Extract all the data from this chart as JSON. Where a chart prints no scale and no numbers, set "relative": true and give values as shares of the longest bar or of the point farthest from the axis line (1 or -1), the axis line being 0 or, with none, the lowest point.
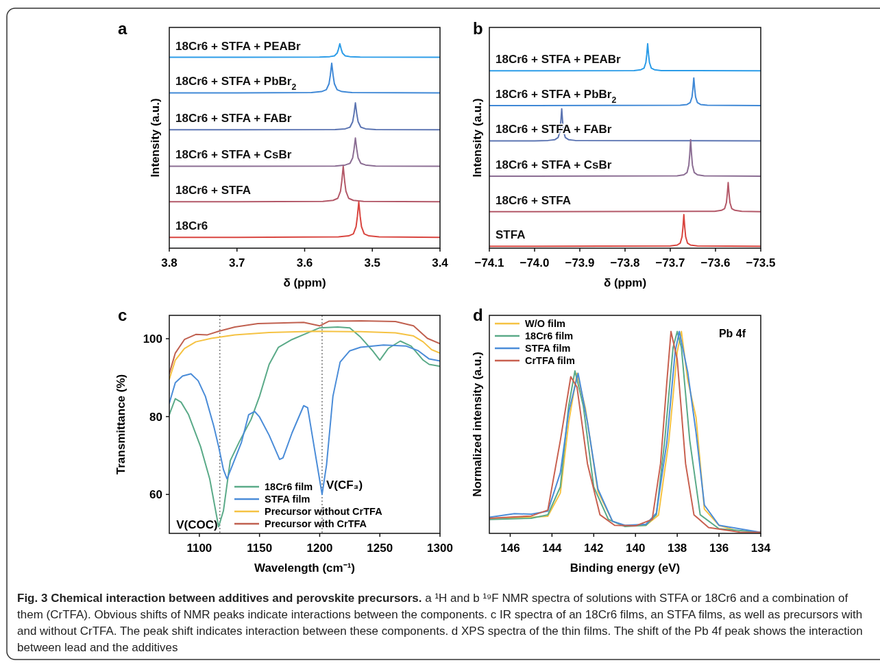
{
  "chart_data": [
    {
      "type": "line",
      "title": "a",
      "relative": true,
      "xlabel": "δ (ppm)",
      "ylabel": "Intensity (a.u.)",
      "xlim": [
        3.8,
        3.4
      ],
      "xticks": [
        3.8,
        3.7,
        3.6,
        3.5,
        3.4
      ],
      "annotations": [
        "Fig. 3 Chemical interaction between additives and perovskite precursors.",
        "a ¹H and b ¹⁹F NMR spectra of solutions with STFA or 18Cr6 and a combination of them (CrTFA). Obvious shifts of NMR peaks indicate interactions between the components. c IR spectra of an 18Cr6 films, an STFA films, as well as precursors with and without CrTFA. The peak shift indicates interaction between these components. d XPS spectra of the thin films. The shift of the Pb 4f peak shows the interaction between lead and the additives"
      ],
      "series": [
        {
          "name": "18Cr6 + STFA + PEABr",
          "color": "#2b9ce8",
          "x": [
            3.8,
            3.7,
            3.578,
            3.563,
            3.556,
            3.552,
            3.55,
            3.548,
            3.546,
            3.544,
            3.54,
            3.533,
            3.518,
            3.4
          ],
          "values": [
            0.934,
            0.934,
            0.935,
            0.937,
            0.941,
            0.954,
            0.974,
            1.0,
            0.974,
            0.954,
            0.941,
            0.937,
            0.935,
            0.934
          ]
        },
        {
          "name": "18Cr6 + STFA + PbBr$_{2}$",
          "color": "#3f88d6",
          "x": [
            3.8,
            3.7,
            3.59,
            3.575,
            3.568,
            3.564,
            3.562,
            3.56,
            3.558,
            3.556,
            3.552,
            3.545,
            3.53,
            3.4
          ],
          "values": [
            0.76,
            0.76,
            0.761,
            0.766,
            0.775,
            0.804,
            0.847,
            0.905,
            0.847,
            0.804,
            0.775,
            0.766,
            0.761,
            0.76
          ]
        },
        {
          "name": "18Cr6 + STFA + FABr",
          "color": "#5b74b2",
          "x": [
            3.8,
            3.7,
            3.555,
            3.54,
            3.533,
            3.529,
            3.527,
            3.525,
            3.523,
            3.521,
            3.517,
            3.51,
            3.495,
            3.4
          ],
          "values": [
            0.579,
            0.579,
            0.58,
            0.584,
            0.592,
            0.619,
            0.658,
            0.711,
            0.658,
            0.619,
            0.592,
            0.584,
            0.58,
            0.579
          ]
        },
        {
          "name": "18Cr6 + STFA + CsBr",
          "color": "#8b6d93",
          "x": [
            3.8,
            3.7,
            3.555,
            3.54,
            3.533,
            3.529,
            3.527,
            3.525,
            3.523,
            3.521,
            3.517,
            3.51,
            3.495,
            3.4
          ],
          "values": [
            0.401,
            0.401,
            0.402,
            0.407,
            0.415,
            0.442,
            0.484,
            0.539,
            0.484,
            0.442,
            0.415,
            0.407,
            0.402,
            0.401
          ]
        },
        {
          "name": "18Cr6 + STFA",
          "color": "#b35868",
          "x": [
            3.8,
            3.7,
            3.573,
            3.558,
            3.551,
            3.547,
            3.545,
            3.543,
            3.541,
            3.539,
            3.535,
            3.528,
            3.513,
            3.4
          ],
          "values": [
            0.227,
            0.227,
            0.229,
            0.234,
            0.244,
            0.279,
            0.331,
            0.401,
            0.331,
            0.279,
            0.244,
            0.234,
            0.229,
            0.227
          ]
        },
        {
          "name": "18Cr6",
          "color": "#d9453f",
          "x": [
            3.8,
            3.7,
            3.55,
            3.535,
            3.528,
            3.524,
            3.522,
            3.52,
            3.518,
            3.516,
            3.512,
            3.505,
            3.49,
            3.4
          ],
          "values": [
            0.053,
            0.053,
            0.055,
            0.06,
            0.07,
            0.105,
            0.157,
            0.227,
            0.157,
            0.105,
            0.07,
            0.06,
            0.055,
            0.053
          ]
        }
      ]
    },
    {
      "type": "line",
      "title": "b",
      "relative": true,
      "xlabel": "δ (ppm)",
      "ylabel": "Intensity (a.u.)",
      "xlim": [
        -74.1,
        -73.5
      ],
      "xticks": [
        {
          "value": -74.1,
          "label": "−74.1"
        },
        {
          "value": -74.0,
          "label": "−74.0"
        },
        {
          "value": -73.9,
          "label": "−73.9"
        },
        {
          "value": -73.8,
          "label": "−73.8"
        },
        {
          "value": -73.7,
          "label": "−73.7"
        },
        {
          "value": -73.6,
          "label": "−73.6"
        },
        {
          "value": -73.5,
          "label": "−73.5"
        }
      ],
      "series": [
        {
          "name": "18Cr6 + STFA + PEABr",
          "color": "#2b9ce8",
          "x": [
            -74.1,
            -74.0,
            -73.78,
            -73.765,
            -73.758,
            -73.754,
            -73.752,
            -73.75,
            -73.748,
            -73.746,
            -73.742,
            -73.735,
            -73.72,
            -73.5
          ],
          "values": [
            0.868,
            0.868,
            0.869,
            0.873,
            0.881,
            0.908,
            0.947,
            1.0,
            0.947,
            0.908,
            0.881,
            0.873,
            0.869,
            0.868
          ]
        },
        {
          "name": "18Cr6 + STFA + PbBr$_{2}$",
          "color": "#3f88d6",
          "x": [
            -74.1,
            -74.0,
            -73.678,
            -73.663,
            -73.656,
            -73.652,
            -73.65,
            -73.648,
            -73.646,
            -73.644,
            -73.64,
            -73.633,
            -73.618,
            -73.5
          ],
          "values": [
            0.698,
            0.698,
            0.699,
            0.703,
            0.712,
            0.739,
            0.779,
            0.833,
            0.779,
            0.739,
            0.712,
            0.703,
            0.699,
            0.698
          ]
        },
        {
          "name": "18Cr6 + STFA + FABr",
          "color": "#5b74b2",
          "x": [
            -74.1,
            -74.0,
            -73.97,
            -73.955,
            -73.948,
            -73.944,
            -73.942,
            -73.94,
            -73.938,
            -73.936,
            -73.932,
            -73.925,
            -73.91,
            -73.5
          ],
          "values": [
            0.525,
            0.525,
            0.527,
            0.531,
            0.541,
            0.572,
            0.619,
            0.682,
            0.619,
            0.572,
            0.541,
            0.531,
            0.527,
            0.525
          ]
        },
        {
          "name": "18Cr6 + STFA + CsBr",
          "color": "#8b6d93",
          "x": [
            -74.1,
            -74.0,
            -73.685,
            -73.67,
            -73.663,
            -73.659,
            -73.657,
            -73.655,
            -73.653,
            -73.651,
            -73.647,
            -73.64,
            -73.625,
            -73.5
          ],
          "values": [
            0.352,
            0.352,
            0.354,
            0.359,
            0.37,
            0.406,
            0.459,
            0.531,
            0.459,
            0.406,
            0.37,
            0.359,
            0.354,
            0.352
          ]
        },
        {
          "name": "18Cr6 + STFA",
          "color": "#b35868",
          "x": [
            -74.1,
            -74.0,
            -73.602,
            -73.587,
            -73.58,
            -73.576,
            -73.574,
            -73.572,
            -73.57,
            -73.568,
            -73.564,
            -73.557,
            -73.542,
            -73.5
          ],
          "values": [
            0.179,
            0.179,
            0.18,
            0.185,
            0.193,
            0.222,
            0.264,
            0.321,
            0.264,
            0.222,
            0.193,
            0.185,
            0.18,
            0.179
          ]
        },
        {
          "name": "STFA",
          "color": "#d9453f",
          "x": [
            -74.1,
            -74.0,
            -73.7,
            -73.685,
            -73.678,
            -73.674,
            -73.672,
            -73.67,
            -73.668,
            -73.666,
            -73.662,
            -73.655,
            -73.64,
            -73.5
          ],
          "values": [
            0.009,
            0.009,
            0.011,
            0.015,
            0.025,
            0.056,
            0.102,
            0.164,
            0.102,
            0.056,
            0.025,
            0.015,
            0.011,
            0.009
          ]
        }
      ]
    },
    {
      "type": "line",
      "title": "c",
      "xlabel": "Wavelength (cm⁻¹)",
      "ylabel": "Transmittance (%)",
      "xlim": [
        1075,
        1300
      ],
      "xticks": [
        1100,
        1150,
        1200,
        1250,
        1300
      ],
      "ylim": [
        50,
        106
      ],
      "yticks": [
        60,
        80,
        100
      ],
      "legend": "bottom",
      "ref_lines": [
        {
          "axis": "x",
          "value": 1117,
          "color": "#777777",
          "line_style": "dotted"
        },
        {
          "axis": "x",
          "value": 1202,
          "color": "#777777",
          "line_style": "dotted"
        }
      ],
      "annotations": [
        {
          "text": "V(COC)",
          "x": 1117,
          "y": 52
        },
        {
          "text": "V(CF₃)",
          "x": 1202,
          "y": 60
        }
      ],
      "series": [
        {
          "name": "18Cr6 film",
          "color": "#5aaa88",
          "x": [
            1075,
            1080,
            1084.8,
            1091,
            1101,
            1108.6,
            1116,
            1120,
            1125.7,
            1133,
            1143,
            1150,
            1158,
            1165.7,
            1177,
            1188.6,
            1200,
            1215,
            1225,
            1234,
            1244,
            1250,
            1257,
            1267,
            1276,
            1286,
            1291,
            1300
          ],
          "values": [
            80.5,
            84.6,
            83.7,
            80.5,
            72.3,
            64,
            51.7,
            55.8,
            68.7,
            73.4,
            79.3,
            85.2,
            93.4,
            97.8,
            99.8,
            101.3,
            102.8,
            103,
            102.8,
            100.4,
            96.9,
            94.5,
            97.5,
            99.4,
            98.1,
            94.5,
            93.4,
            92.9
          ]
        },
        {
          "name": "STFA film",
          "color": "#4a8cd8",
          "x": [
            1075,
            1080,
            1086,
            1093,
            1099,
            1105,
            1112,
            1116,
            1120,
            1123,
            1127.6,
            1135,
            1141,
            1146,
            1150,
            1158,
            1166.7,
            1169.5,
            1177,
            1186.7,
            1190,
            1196,
            1202,
            1205.7,
            1211,
            1217,
            1225,
            1234,
            1253,
            1272,
            1282,
            1291,
            1300
          ],
          "values": [
            83.4,
            88.7,
            90.4,
            91,
            89.2,
            85.2,
            77.5,
            72.3,
            66.4,
            64,
            67.6,
            73.4,
            80.5,
            81.3,
            79.9,
            75.2,
            69,
            69.4,
            75.8,
            82.8,
            82.3,
            71.1,
            60,
            67.6,
            85.2,
            94,
            96.9,
            97.8,
            98.4,
            98.1,
            96.9,
            94.8,
            94.3
          ]
        },
        {
          "name": "Precursor without CrTFA",
          "color": "#f5c242",
          "x": [
            1075,
            1080,
            1087.6,
            1097,
            1110,
            1129.5,
            1158,
            1196,
            1234,
            1263,
            1278,
            1286,
            1293,
            1300
          ],
          "values": [
            89.6,
            94.5,
            97.5,
            99.2,
            100.1,
            101,
            101.6,
            101.9,
            101.8,
            101.5,
            100.7,
            99.2,
            97.2,
            96.3
          ]
        },
        {
          "name": "Precursor with CrTFA",
          "color": "#c0604f",
          "x": [
            1075,
            1080,
            1087.6,
            1097,
            1106.7,
            1116,
            1129.5,
            1148.6,
            1186.7,
            1200,
            1207.6,
            1234,
            1263,
            1278,
            1289.5,
            1300
          ],
          "values": [
            91,
            96.3,
            99.8,
            101.1,
            101,
            101.9,
            103,
            103.9,
            104.2,
            103.3,
            104.5,
            104.6,
            104.4,
            103.3,
            100.1,
            98.7
          ]
        }
      ]
    },
    {
      "type": "line",
      "title": "d",
      "relative": true,
      "xlabel": "Binding energy (eV)",
      "ylabel": "Normalized intensity (a.u.)",
      "xlim": [
        147,
        134
      ],
      "xticks": [
        146,
        144,
        142,
        140,
        138,
        136,
        134
      ],
      "legend": "top left",
      "annotations": [
        "Pb 4f"
      ],
      "series": [
        {
          "name": "W/O film",
          "color": "#f5c242",
          "x": [
            147,
            145,
            144.2,
            143.6,
            143.2,
            142.8,
            142.4,
            141.8,
            141.1,
            140.5,
            139.5,
            138.9,
            138.4,
            138,
            137.8,
            137.5,
            137.1,
            136.7,
            136,
            135.2
          ],
          "values": [
            0.075,
            0.08,
            0.085,
            0.2,
            0.55,
            0.793,
            0.62,
            0.207,
            0.06,
            0.037,
            0.04,
            0.09,
            0.46,
            0.9,
            1.0,
            0.76,
            0.575,
            0.12,
            0.04,
            0.015
          ]
        },
        {
          "name": "18Cr6 film",
          "color": "#5aaa88",
          "x": [
            147,
            145,
            144.2,
            143.6,
            143.2,
            142.9,
            142.5,
            142,
            141.3,
            140.5,
            139.5,
            139,
            138.6,
            138.2,
            138,
            137.8,
            137.4,
            136.9,
            136,
            134
          ],
          "values": [
            0.069,
            0.075,
            0.092,
            0.23,
            0.632,
            0.805,
            0.632,
            0.23,
            0.069,
            0.034,
            0.04,
            0.092,
            0.46,
            0.92,
            1.0,
            0.92,
            0.46,
            0.092,
            0.023,
            0.005
          ]
        },
        {
          "name": "STFA film",
          "color": "#4a8cd8",
          "x": [
            147,
            145.8,
            145,
            144.2,
            143.6,
            143.2,
            142.75,
            142.3,
            141.8,
            141.1,
            140.5,
            139.5,
            139,
            138.5,
            138.1,
            137.9,
            137.5,
            137.1,
            136.7,
            136,
            134
          ],
          "values": [
            0.08,
            0.098,
            0.095,
            0.11,
            0.3,
            0.6,
            0.793,
            0.55,
            0.22,
            0.06,
            0.04,
            0.045,
            0.1,
            0.45,
            0.9,
            1.0,
            0.8,
            0.5,
            0.14,
            0.04,
            0.005
          ]
        },
        {
          "name": "CrTFA film",
          "color": "#c8604f",
          "x": [
            147,
            145,
            144.2,
            143.6,
            143.1,
            142.8,
            142.3,
            141.7,
            141,
            140,
            139.2,
            138.8,
            138.5,
            138.3,
            138,
            137.6,
            137.2,
            136.5,
            135,
            134
          ],
          "values": [
            0.075,
            0.086,
            0.115,
            0.46,
            0.776,
            0.724,
            0.345,
            0.092,
            0.04,
            0.037,
            0.069,
            0.345,
            0.747,
            1.0,
            0.862,
            0.345,
            0.092,
            0.029,
            0.006,
            0.005
          ]
        }
      ]
    }
  ]
}
